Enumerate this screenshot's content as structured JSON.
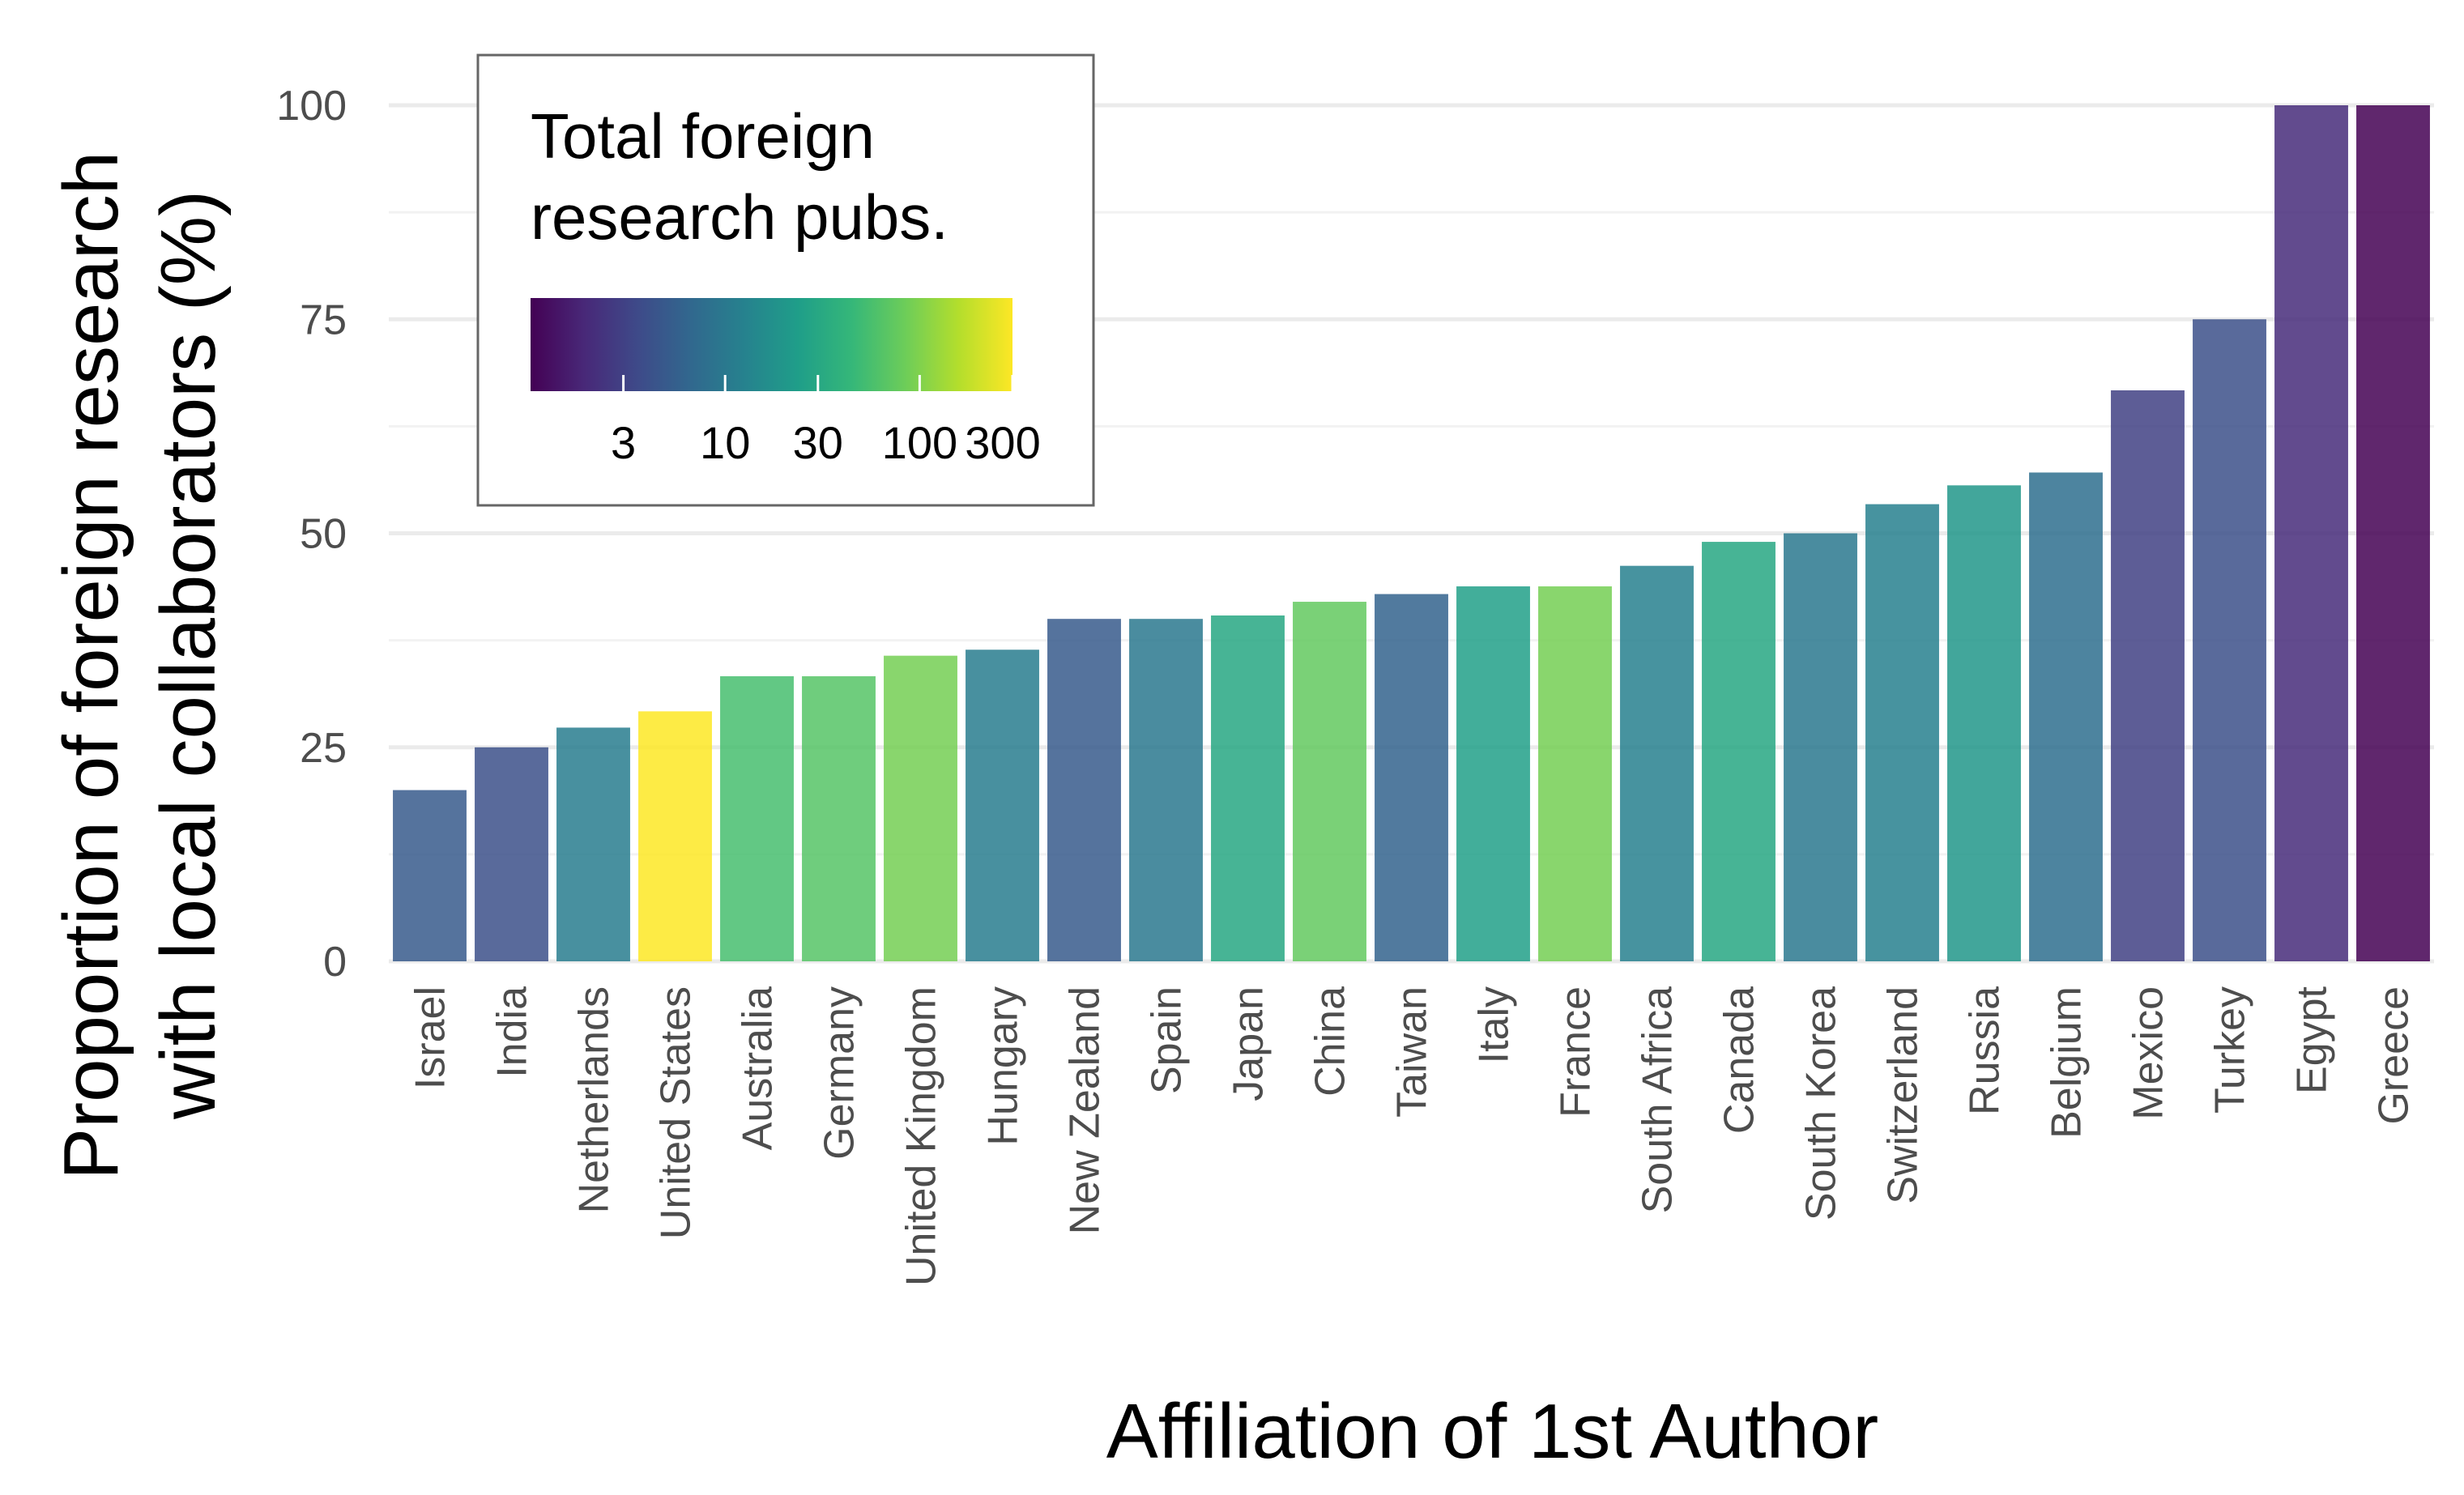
{
  "chart_data": {
    "type": "bar",
    "xlabel": "Affiliation of 1st Author",
    "ylabel_lines": [
      "Proportion of foreign research",
      "with local collaborators (%)"
    ],
    "ylim": [
      0,
      100
    ],
    "y_ticks": [
      0,
      25,
      50,
      75,
      100
    ],
    "grid": true,
    "legend": {
      "title_lines": [
        "Total foreign",
        "research pubs."
      ],
      "scale": "log",
      "placement": "top-left",
      "domain": [
        1,
        300
      ],
      "ticks": [
        3,
        10,
        30,
        100,
        300
      ],
      "palette": [
        "#440154",
        "#482878",
        "#3E4A89",
        "#31688E",
        "#26828E",
        "#1F9E89",
        "#35B779",
        "#6DCD59",
        "#B4DE2C",
        "#FDE725"
      ]
    },
    "categories": [
      "Israel",
      "India",
      "Netherlands",
      "United States",
      "Australia",
      "Germany",
      "United Kingdom",
      "Hungary",
      "New Zealand",
      "Spain",
      "Japan",
      "China",
      "Taiwan",
      "Italy",
      "France",
      "South Africa",
      "Canada",
      "South Korea",
      "Switzerland",
      "Russia",
      "Belgium",
      "Mexico",
      "Turkey",
      "Egypt",
      "Greece"
    ],
    "values": [
      20,
      25,
      27.3,
      29.2,
      33.3,
      33.3,
      35.7,
      36.4,
      40,
      40,
      40.4,
      42,
      42.9,
      43.8,
      43.8,
      46.2,
      49,
      50,
      53.4,
      55.6,
      57.1,
      66.7,
      75,
      100,
      100
    ],
    "total_pubs": [
      5,
      4,
      11,
      300,
      55,
      65,
      90,
      11,
      5,
      10,
      30,
      75,
      6,
      25,
      90,
      12,
      30,
      10,
      12,
      20,
      8,
      3,
      4,
      2,
      1
    ]
  }
}
